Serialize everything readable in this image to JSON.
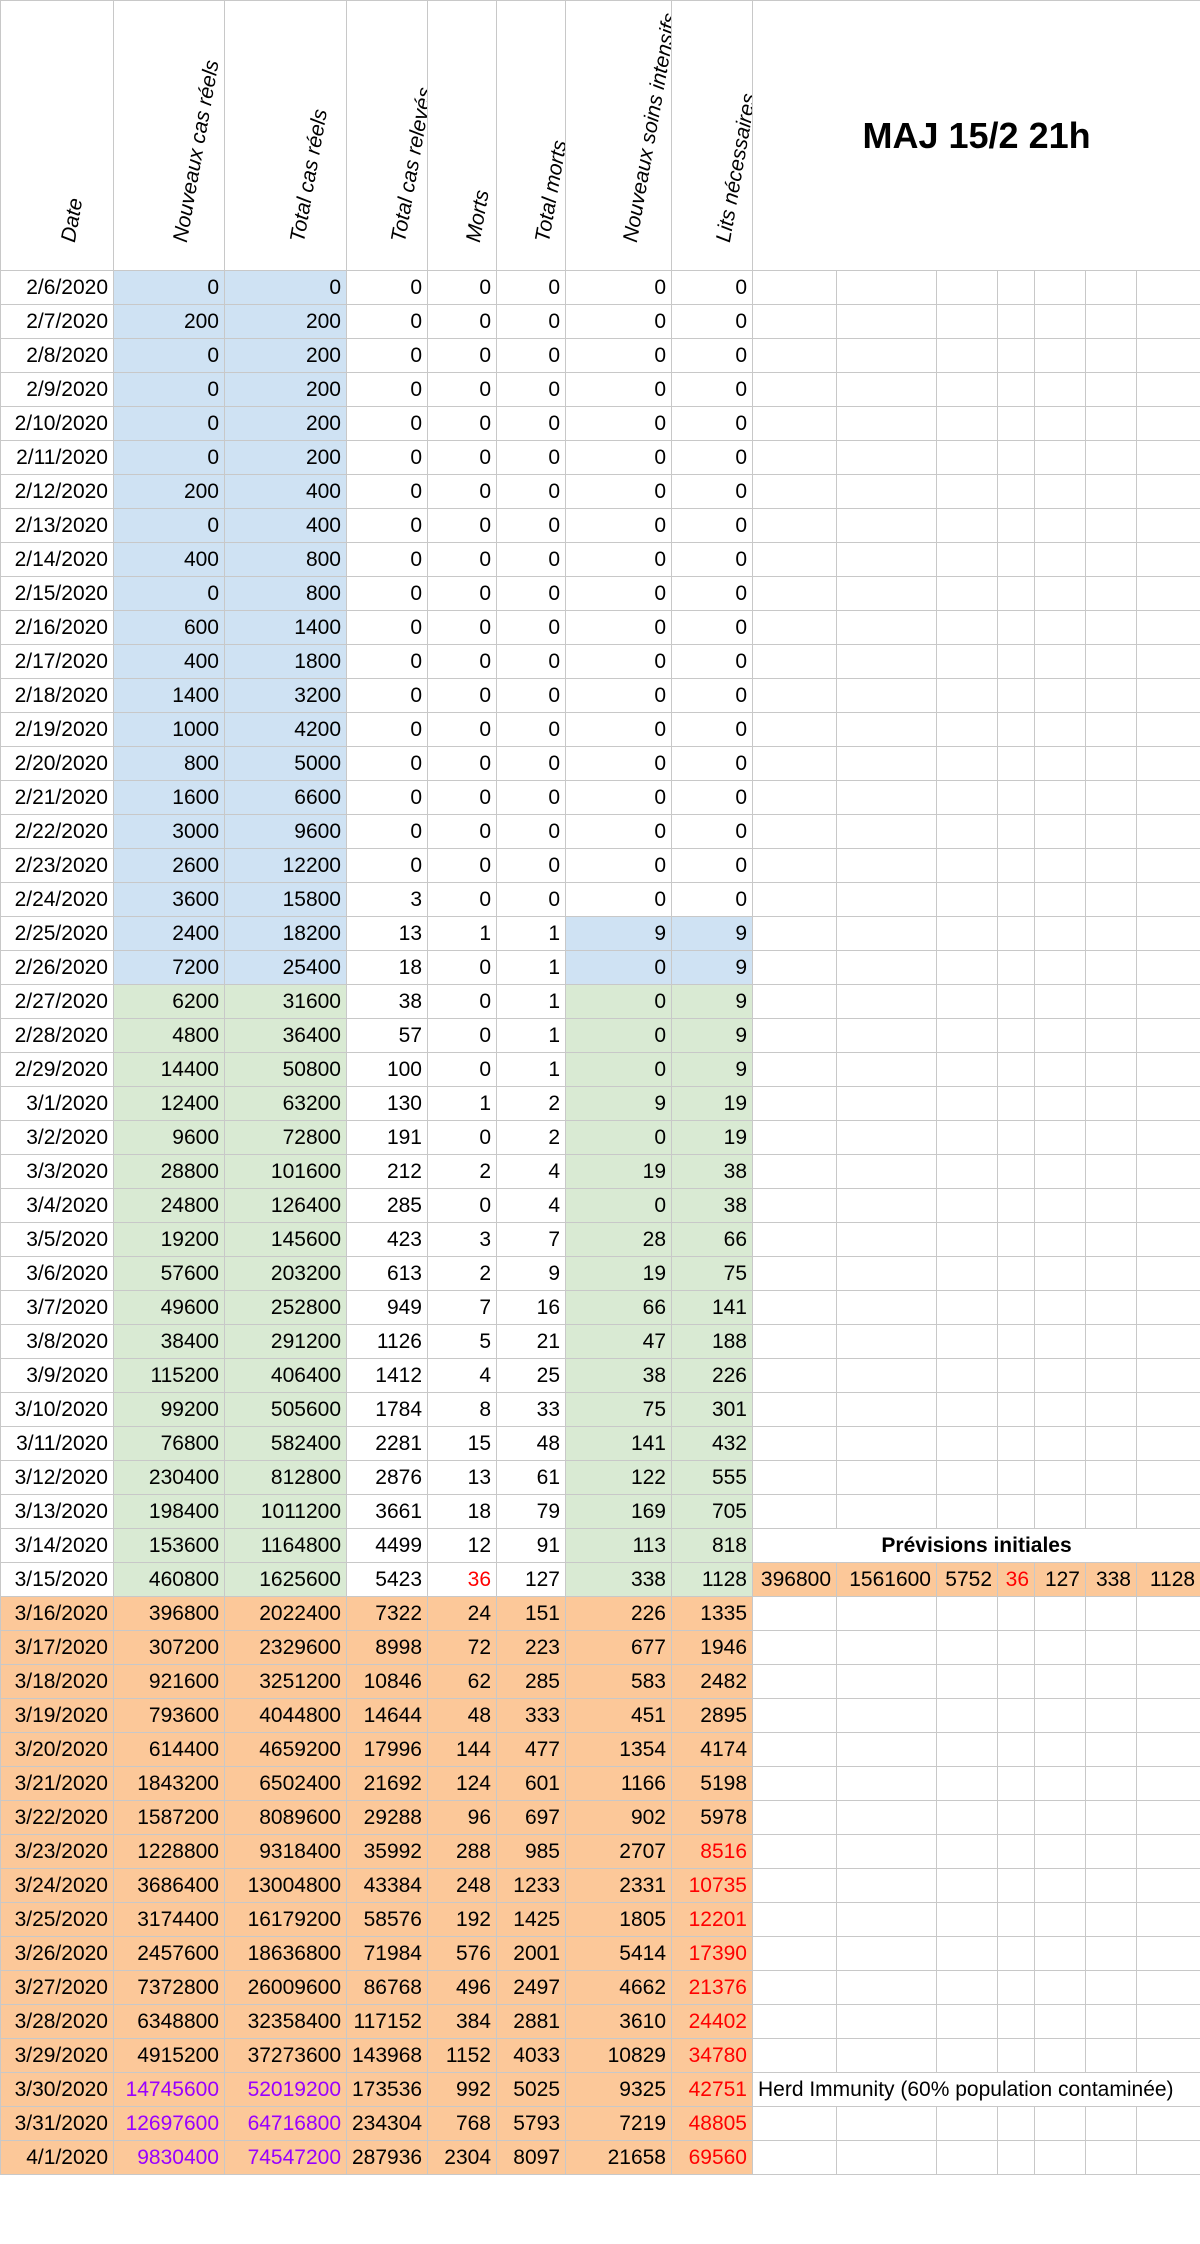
{
  "title": "MAJ 15/2 21h",
  "headers": [
    "Date",
    "Nouveaux cas réels",
    "Total cas réels",
    "Total cas relevés",
    "Morts",
    "Total morts",
    "Nouveaux soins intensifs",
    "Lits nécessaires"
  ],
  "rows": [
    [
      "2/6/2020",
      "0",
      "0",
      "0",
      "0",
      "0",
      "0",
      "0"
    ],
    [
      "2/7/2020",
      "200",
      "200",
      "0",
      "0",
      "0",
      "0",
      "0"
    ],
    [
      "2/8/2020",
      "0",
      "200",
      "0",
      "0",
      "0",
      "0",
      "0"
    ],
    [
      "2/9/2020",
      "0",
      "200",
      "0",
      "0",
      "0",
      "0",
      "0"
    ],
    [
      "2/10/2020",
      "0",
      "200",
      "0",
      "0",
      "0",
      "0",
      "0"
    ],
    [
      "2/11/2020",
      "0",
      "200",
      "0",
      "0",
      "0",
      "0",
      "0"
    ],
    [
      "2/12/2020",
      "200",
      "400",
      "0",
      "0",
      "0",
      "0",
      "0"
    ],
    [
      "2/13/2020",
      "0",
      "400",
      "0",
      "0",
      "0",
      "0",
      "0"
    ],
    [
      "2/14/2020",
      "400",
      "800",
      "0",
      "0",
      "0",
      "0",
      "0"
    ],
    [
      "2/15/2020",
      "0",
      "800",
      "0",
      "0",
      "0",
      "0",
      "0"
    ],
    [
      "2/16/2020",
      "600",
      "1400",
      "0",
      "0",
      "0",
      "0",
      "0"
    ],
    [
      "2/17/2020",
      "400",
      "1800",
      "0",
      "0",
      "0",
      "0",
      "0"
    ],
    [
      "2/18/2020",
      "1400",
      "3200",
      "0",
      "0",
      "0",
      "0",
      "0"
    ],
    [
      "2/19/2020",
      "1000",
      "4200",
      "0",
      "0",
      "0",
      "0",
      "0"
    ],
    [
      "2/20/2020",
      "800",
      "5000",
      "0",
      "0",
      "0",
      "0",
      "0"
    ],
    [
      "2/21/2020",
      "1600",
      "6600",
      "0",
      "0",
      "0",
      "0",
      "0"
    ],
    [
      "2/22/2020",
      "3000",
      "9600",
      "0",
      "0",
      "0",
      "0",
      "0"
    ],
    [
      "2/23/2020",
      "2600",
      "12200",
      "0",
      "0",
      "0",
      "0",
      "0"
    ],
    [
      "2/24/2020",
      "3600",
      "15800",
      "3",
      "0",
      "0",
      "0",
      "0"
    ],
    [
      "2/25/2020",
      "2400",
      "18200",
      "13",
      "1",
      "1",
      "9",
      "9"
    ],
    [
      "2/26/2020",
      "7200",
      "25400",
      "18",
      "0",
      "1",
      "0",
      "9"
    ],
    [
      "2/27/2020",
      "6200",
      "31600",
      "38",
      "0",
      "1",
      "0",
      "9"
    ],
    [
      "2/28/2020",
      "4800",
      "36400",
      "57",
      "0",
      "1",
      "0",
      "9"
    ],
    [
      "2/29/2020",
      "14400",
      "50800",
      "100",
      "0",
      "1",
      "0",
      "9"
    ],
    [
      "3/1/2020",
      "12400",
      "63200",
      "130",
      "1",
      "2",
      "9",
      "19"
    ],
    [
      "3/2/2020",
      "9600",
      "72800",
      "191",
      "0",
      "2",
      "0",
      "19"
    ],
    [
      "3/3/2020",
      "28800",
      "101600",
      "212",
      "2",
      "4",
      "19",
      "38"
    ],
    [
      "3/4/2020",
      "24800",
      "126400",
      "285",
      "0",
      "4",
      "0",
      "38"
    ],
    [
      "3/5/2020",
      "19200",
      "145600",
      "423",
      "3",
      "7",
      "28",
      "66"
    ],
    [
      "3/6/2020",
      "57600",
      "203200",
      "613",
      "2",
      "9",
      "19",
      "75"
    ],
    [
      "3/7/2020",
      "49600",
      "252800",
      "949",
      "7",
      "16",
      "66",
      "141"
    ],
    [
      "3/8/2020",
      "38400",
      "291200",
      "1126",
      "5",
      "21",
      "47",
      "188"
    ],
    [
      "3/9/2020",
      "115200",
      "406400",
      "1412",
      "4",
      "25",
      "38",
      "226"
    ],
    [
      "3/10/2020",
      "99200",
      "505600",
      "1784",
      "8",
      "33",
      "75",
      "301"
    ],
    [
      "3/11/2020",
      "76800",
      "582400",
      "2281",
      "15",
      "48",
      "141",
      "432"
    ],
    [
      "3/12/2020",
      "230400",
      "812800",
      "2876",
      "13",
      "61",
      "122",
      "555"
    ],
    [
      "3/13/2020",
      "198400",
      "1011200",
      "3661",
      "18",
      "79",
      "169",
      "705"
    ],
    [
      "3/14/2020",
      "153600",
      "1164800",
      "4499",
      "12",
      "91",
      "113",
      "818"
    ],
    [
      "3/15/2020",
      "460800",
      "1625600",
      "5423",
      "36",
      "127",
      "338",
      "1128"
    ],
    [
      "3/16/2020",
      "396800",
      "2022400",
      "7322",
      "24",
      "151",
      "226",
      "1335"
    ],
    [
      "3/17/2020",
      "307200",
      "2329600",
      "8998",
      "72",
      "223",
      "677",
      "1946"
    ],
    [
      "3/18/2020",
      "921600",
      "3251200",
      "10846",
      "62",
      "285",
      "583",
      "2482"
    ],
    [
      "3/19/2020",
      "793600",
      "4044800",
      "14644",
      "48",
      "333",
      "451",
      "2895"
    ],
    [
      "3/20/2020",
      "614400",
      "4659200",
      "17996",
      "144",
      "477",
      "1354",
      "4174"
    ],
    [
      "3/21/2020",
      "1843200",
      "6502400",
      "21692",
      "124",
      "601",
      "1166",
      "5198"
    ],
    [
      "3/22/2020",
      "1587200",
      "8089600",
      "29288",
      "96",
      "697",
      "902",
      "5978"
    ],
    [
      "3/23/2020",
      "1228800",
      "9318400",
      "35992",
      "288",
      "985",
      "2707",
      "8516"
    ],
    [
      "3/24/2020",
      "3686400",
      "13004800",
      "43384",
      "248",
      "1233",
      "2331",
      "10735"
    ],
    [
      "3/25/2020",
      "3174400",
      "16179200",
      "58576",
      "192",
      "1425",
      "1805",
      "12201"
    ],
    [
      "3/26/2020",
      "2457600",
      "18636800",
      "71984",
      "576",
      "2001",
      "5414",
      "17390"
    ],
    [
      "3/27/2020",
      "7372800",
      "26009600",
      "86768",
      "496",
      "2497",
      "4662",
      "21376"
    ],
    [
      "3/28/2020",
      "6348800",
      "32358400",
      "117152",
      "384",
      "2881",
      "3610",
      "24402"
    ],
    [
      "3/29/2020",
      "4915200",
      "37273600",
      "143968",
      "1152",
      "4033",
      "10829",
      "34780"
    ],
    [
      "3/30/2020",
      "14745600",
      "52019200",
      "173536",
      "992",
      "5025",
      "9325",
      "42751"
    ],
    [
      "3/31/2020",
      "12697600",
      "64716800",
      "234304",
      "768",
      "5793",
      "7219",
      "48805"
    ],
    [
      "4/1/2020",
      "9830400",
      "74547200",
      "287936",
      "2304",
      "8097",
      "21658",
      "69560"
    ]
  ],
  "previsions": {
    "title": "Prévisions initiales",
    "values": [
      "396800",
      "1561600",
      "5752",
      "36",
      "127",
      "338",
      "1128"
    ]
  },
  "note": "Herd Immunity (60% population contaminée)"
}
